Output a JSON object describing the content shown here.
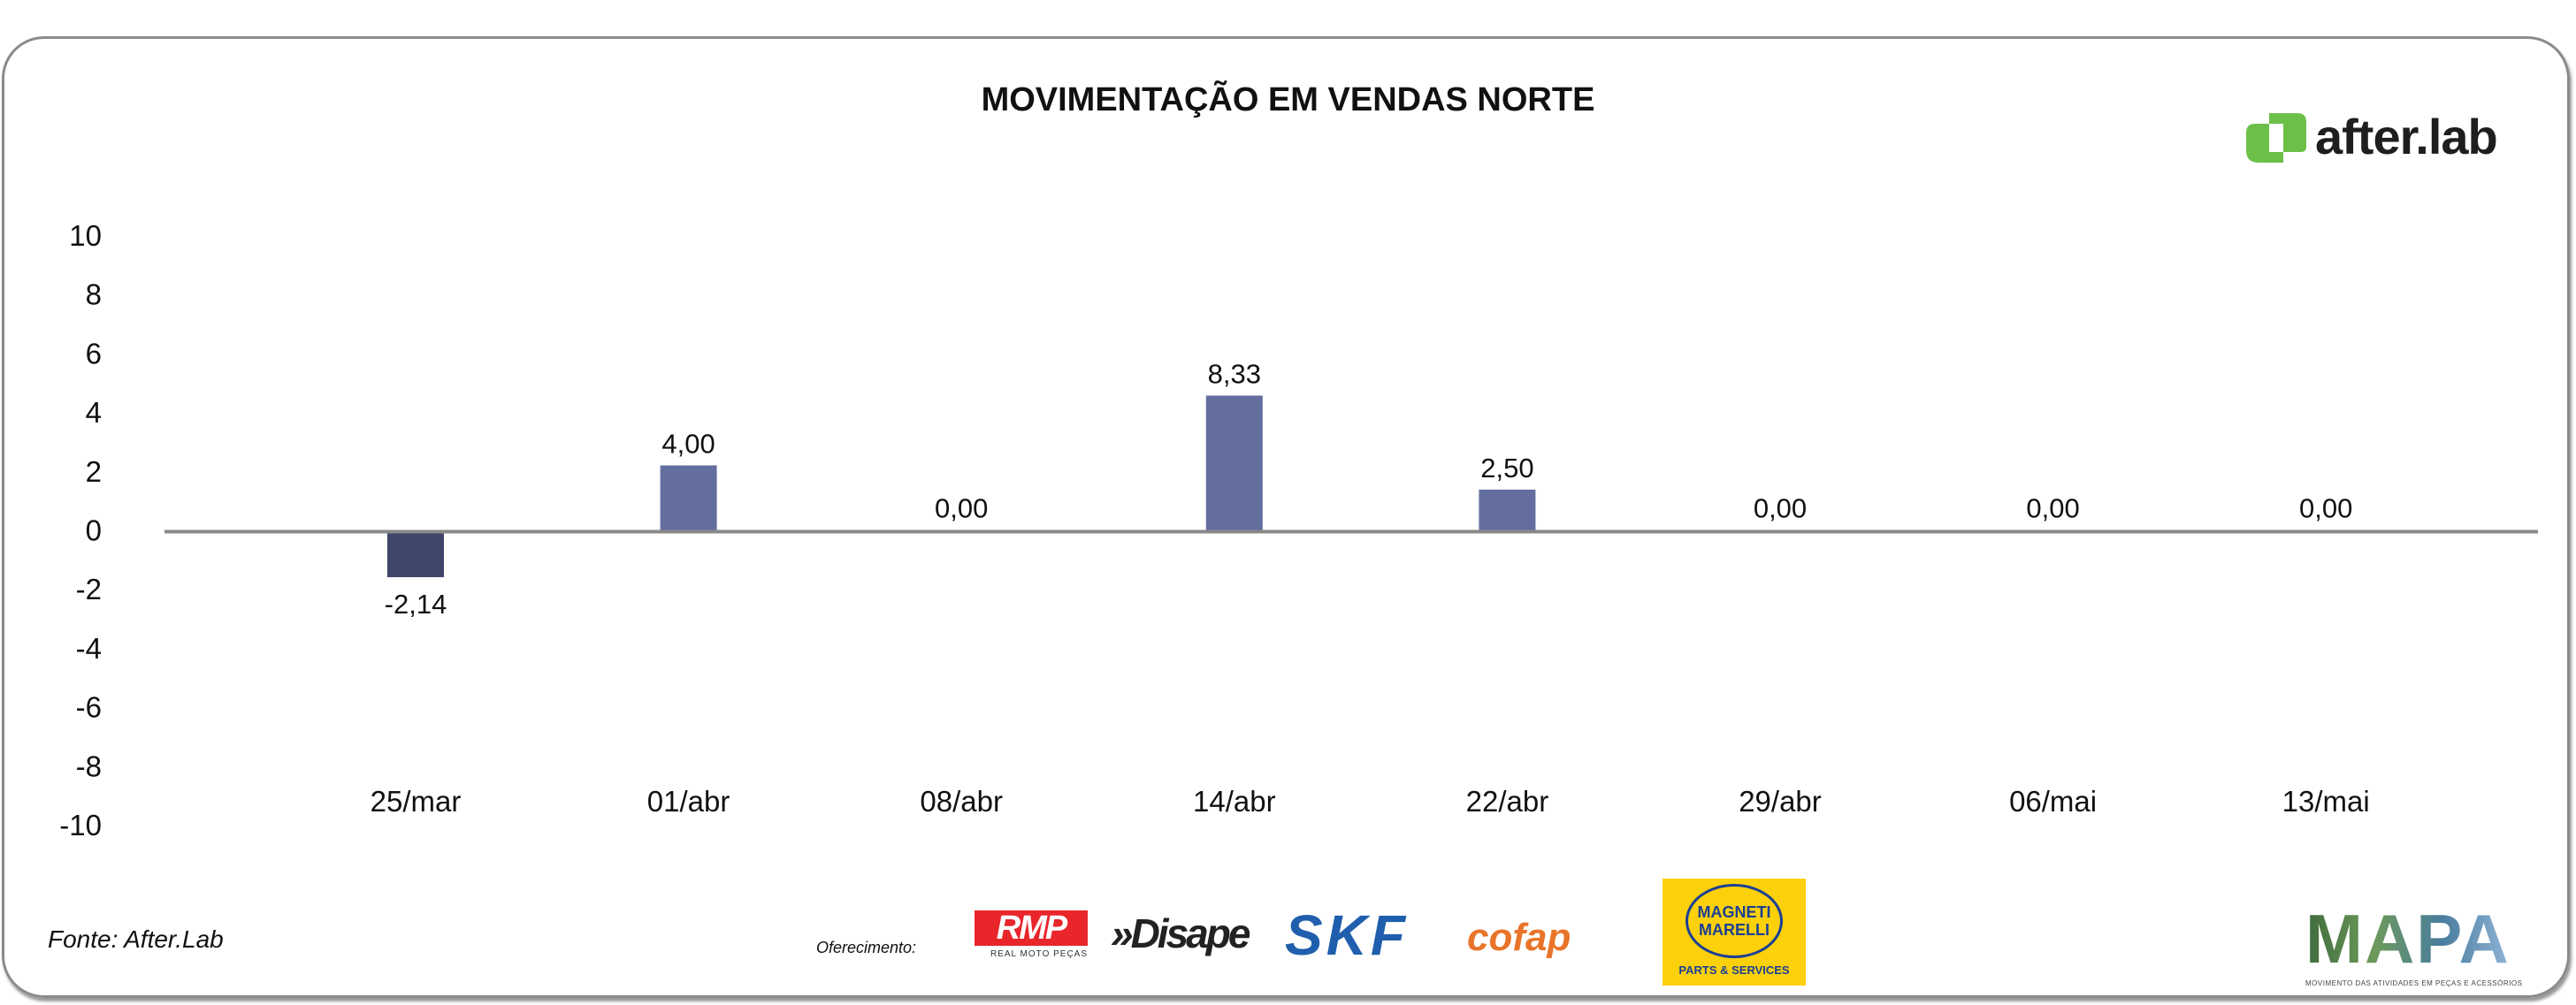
{
  "chart_data": {
    "type": "bar",
    "title": "MOVIMENTAÇÃO EM VENDAS NORTE",
    "categories": [
      "25/mar",
      "01/abr",
      "08/abr",
      "14/abr",
      "22/abr",
      "29/abr",
      "06/mai",
      "13/mai"
    ],
    "values": [
      -2.14,
      4.0,
      0.0,
      8.33,
      2.5,
      0.0,
      0.0,
      0.0
    ],
    "data_labels": [
      "-2,14",
      "4,00",
      "0,00",
      "8,33",
      "2,50",
      "0,00",
      "0,00",
      "0,00"
    ],
    "yticks": [
      "10",
      "8",
      "6",
      "4",
      "2",
      "0",
      "-2",
      "-4",
      "-6",
      "-8",
      "-10"
    ],
    "ylim": [
      -10,
      10
    ],
    "xlabel": "",
    "ylabel": "",
    "grid": false,
    "legend": "none",
    "colors": {
      "positive": "#636e9f",
      "negative": "#3f4669",
      "axis": "#888888"
    }
  },
  "footer": {
    "source": "Fonte: After.Lab",
    "sponsor_label": "Oferecimento:",
    "logos": {
      "rmp": "RMP",
      "rmp_sub": "REAL MOTO PEÇAS",
      "disape": "»Disape",
      "skf": "SKF",
      "cofap": "cofap",
      "magneti": "MAGNETI MARELLI",
      "magneti_sub": "PARTS & SERVICES",
      "mapa": "MAPA",
      "mapa_sub": "MOVIMENTO DAS ATIVIDADES EM PEÇAS E ACESSÓRIOS"
    }
  },
  "brand": {
    "name": "after.lab",
    "color": "#6cc04a"
  }
}
